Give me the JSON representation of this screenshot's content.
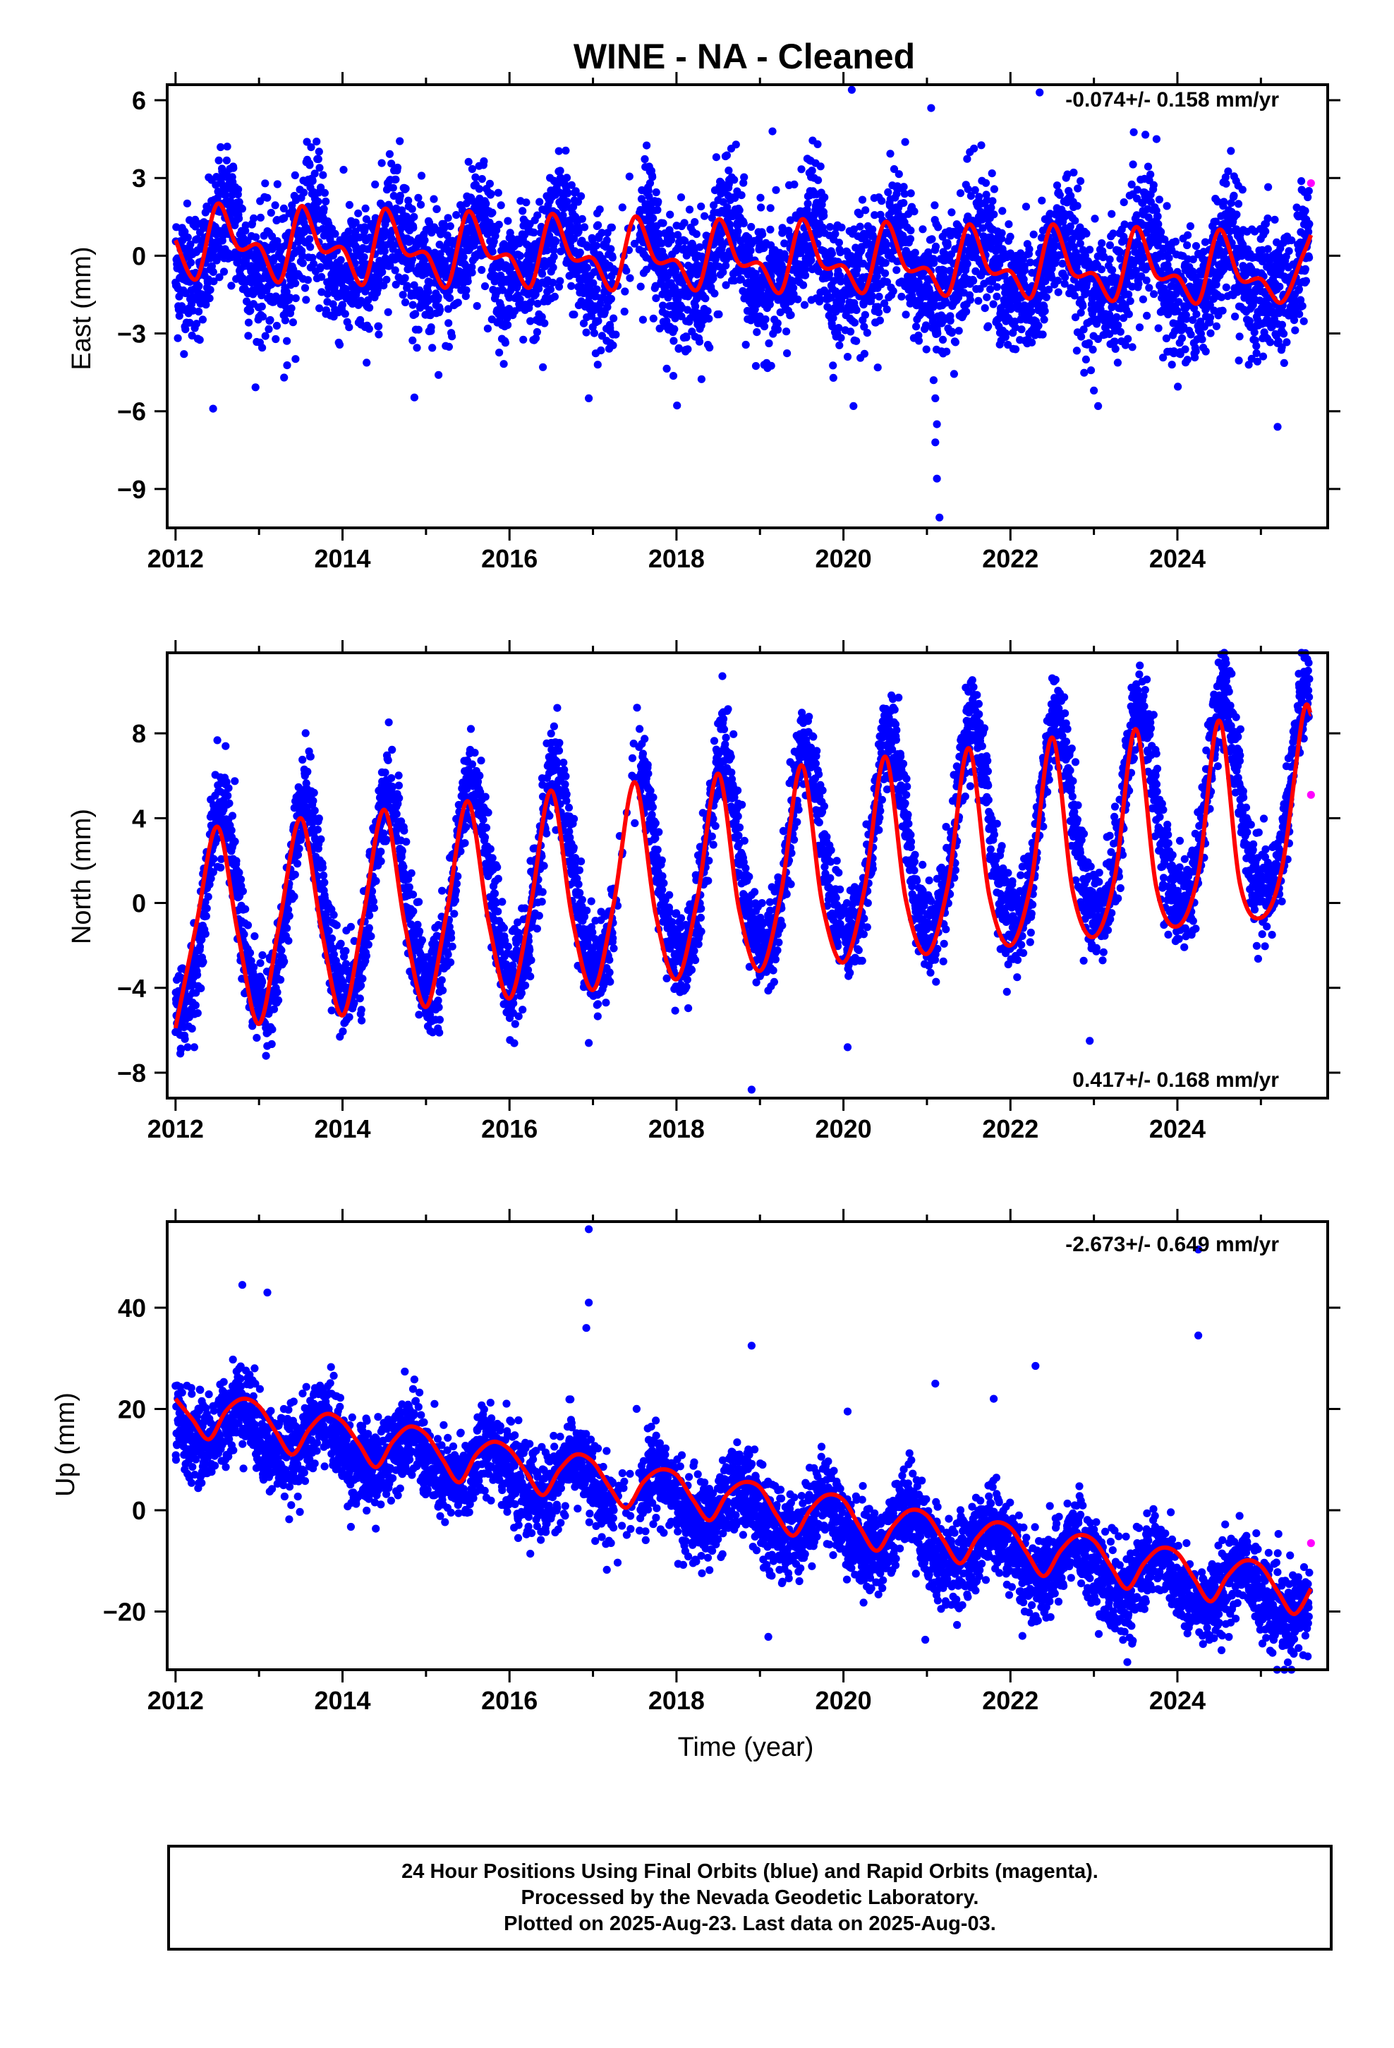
{
  "chart_data": [
    {
      "type": "scatter",
      "title": "WINE  - NA - Cleaned",
      "xlabel": "",
      "ylabel": "East (mm)",
      "xlim": [
        2011.9,
        2025.8
      ],
      "ylim": [
        -10.5,
        6.6
      ],
      "xticks": [
        "2012",
        "2014",
        "2016",
        "2018",
        "2020",
        "2022",
        "2024"
      ],
      "yticks": [
        "6",
        "3",
        "0",
        "-3",
        "-6",
        "-9"
      ],
      "rate_label": "-0.074+/- 0.158 mm/yr",
      "series": [
        {
          "color": "#0000ff",
          "kind": "final_orbits_daily_positions",
          "model": {
            "trend_mm_per_yr": -0.074,
            "offset_mm": 0.2,
            "annual_amp_mm": 1.2,
            "semiannual_amp_mm": 0.5,
            "peak_fraction": 0.62,
            "scatter_mm": 1.25
          },
          "outliers": [
            [
              2012.45,
              -5.9
            ],
            [
              2013.3,
              -4.7
            ],
            [
              2015.15,
              -4.6
            ],
            [
              2016.4,
              -4.3
            ],
            [
              2016.95,
              -5.5
            ],
            [
              2019.15,
              4.8
            ],
            [
              2020.1,
              6.4
            ],
            [
              2020.12,
              -5.8
            ],
            [
              2020.05,
              -3.9
            ],
            [
              2021.05,
              5.7
            ],
            [
              2021.1,
              -5.5
            ],
            [
              2021.12,
              -6.5
            ],
            [
              2021.1,
              -7.2
            ],
            [
              2021.12,
              -8.6
            ],
            [
              2021.15,
              -10.1
            ],
            [
              2021.08,
              -4.8
            ],
            [
              2022.35,
              6.3
            ],
            [
              2023.0,
              -5.2
            ],
            [
              2023.05,
              -5.8
            ],
            [
              2025.2,
              -6.6
            ],
            [
              2023.75,
              4.5
            ]
          ]
        },
        {
          "color": "#ff00ff",
          "kind": "rapid_orbits",
          "points": [
            [
              2025.6,
              2.8
            ]
          ]
        },
        {
          "color": "#ff0000",
          "kind": "model_fit",
          "x": [
            2012.0,
            2012.25,
            2012.5,
            2012.75,
            2013.0,
            2013.25,
            2013.5,
            2013.75,
            2014.0,
            2014.25,
            2014.5,
            2014.75,
            2015.0,
            2015.25,
            2015.5,
            2015.75,
            2016.0,
            2016.25,
            2016.5,
            2016.75,
            2017.0,
            2017.25,
            2017.5,
            2017.75,
            2018.0,
            2018.25,
            2018.5,
            2018.75,
            2019.0,
            2019.25,
            2019.5,
            2019.75,
            2020.0,
            2020.25,
            2020.5,
            2020.75,
            2021.0,
            2021.25,
            2021.5,
            2021.75,
            2022.0,
            2022.25,
            2022.5,
            2022.75,
            2023.0,
            2023.25,
            2023.5,
            2023.75,
            2024.0,
            2024.25,
            2024.5,
            2024.75,
            2025.0,
            2025.25,
            2025.5,
            2025.6
          ],
          "y": [
            0.6,
            -0.9,
            2.0,
            0.3,
            0.4,
            -1.0,
            1.9,
            0.2,
            0.3,
            -1.1,
            1.8,
            0.1,
            0.1,
            -1.2,
            1.7,
            0.0,
            0.0,
            -1.2,
            1.6,
            -0.1,
            -0.1,
            -1.3,
            1.5,
            -0.2,
            -0.2,
            -1.3,
            1.4,
            -0.3,
            -0.3,
            -1.4,
            1.4,
            -0.4,
            -0.4,
            -1.4,
            1.3,
            -0.5,
            -0.5,
            -1.5,
            1.2,
            -0.6,
            -0.6,
            -1.6,
            1.2,
            -0.7,
            -0.7,
            -1.7,
            1.1,
            -0.8,
            -0.8,
            -1.8,
            1.0,
            -0.9,
            -0.9,
            -1.8,
            0.0,
            0.8
          ]
        }
      ]
    },
    {
      "type": "scatter",
      "xlabel": "",
      "ylabel": "North (mm)",
      "xlim": [
        2011.9,
        2025.8
      ],
      "ylim": [
        -9.2,
        11.8
      ],
      "xticks": [
        "2012",
        "2014",
        "2016",
        "2018",
        "2020",
        "2022",
        "2024"
      ],
      "yticks": [
        "8",
        "4",
        "0",
        "-4",
        "-8"
      ],
      "rate_label": "0.417+/- 0.168 mm/yr",
      "series": [
        {
          "color": "#0000ff",
          "kind": "final_orbits_daily_positions",
          "model": {
            "trend_mm_per_yr": 0.417,
            "offset_mm": -1.0,
            "annual_amp_mm": 4.7,
            "semiannual_amp_mm": 0.6,
            "peak_fraction": 0.55,
            "scatter_mm": 1.1
          },
          "outliers": [
            [
              2018.9,
              -8.8
            ],
            [
              2020.05,
              -6.8
            ],
            [
              2016.95,
              -6.6
            ],
            [
              2022.95,
              -6.5
            ],
            [
              2018.55,
              10.7
            ],
            [
              2023.55,
              11.2
            ],
            [
              2013.55,
              6.0
            ],
            [
              2012.6,
              7.4
            ],
            [
              2022.5,
              10.6
            ]
          ]
        },
        {
          "color": "#ff00ff",
          "kind": "rapid_orbits",
          "points": [
            [
              2025.6,
              5.1
            ]
          ]
        },
        {
          "color": "#ff0000",
          "kind": "model_fit",
          "x": [
            2012.0,
            2012.25,
            2012.5,
            2012.75,
            2013.0,
            2013.25,
            2013.5,
            2013.75,
            2014.0,
            2014.25,
            2014.5,
            2014.75,
            2015.0,
            2015.25,
            2015.5,
            2015.75,
            2016.0,
            2016.25,
            2016.5,
            2016.75,
            2017.0,
            2017.25,
            2017.5,
            2017.75,
            2018.0,
            2018.25,
            2018.5,
            2018.75,
            2019.0,
            2019.25,
            2019.5,
            2019.75,
            2020.0,
            2020.25,
            2020.5,
            2020.75,
            2021.0,
            2021.25,
            2021.5,
            2021.75,
            2022.0,
            2022.25,
            2022.5,
            2022.75,
            2023.0,
            2023.25,
            2023.5,
            2023.75,
            2024.0,
            2024.25,
            2024.5,
            2024.75,
            2025.0,
            2025.25,
            2025.5,
            2025.6
          ],
          "y": [
            -5.9,
            -1.0,
            3.6,
            -1.5,
            -5.7,
            -0.8,
            4.0,
            -1.3,
            -5.3,
            -0.6,
            4.4,
            -1.1,
            -4.9,
            -0.4,
            4.8,
            -0.9,
            -4.5,
            -0.2,
            5.3,
            -0.7,
            -4.1,
            0.0,
            5.7,
            -0.5,
            -3.6,
            0.2,
            6.1,
            -0.3,
            -3.2,
            0.4,
            6.5,
            -0.1,
            -2.8,
            0.6,
            6.9,
            0.1,
            -2.4,
            0.8,
            7.3,
            0.3,
            -2.0,
            1.0,
            7.8,
            0.5,
            -1.6,
            1.2,
            8.2,
            0.7,
            -1.1,
            1.4,
            8.6,
            0.9,
            -0.7,
            1.6,
            8.8,
            8.9
          ]
        }
      ]
    },
    {
      "type": "scatter",
      "xlabel": "Time (year)",
      "ylabel": "Up (mm)",
      "xlim": [
        2011.9,
        2025.8
      ],
      "ylim": [
        -31.5,
        57
      ],
      "xticks": [
        "2012",
        "2014",
        "2016",
        "2018",
        "2020",
        "2022",
        "2024"
      ],
      "yticks": [
        "40",
        "20",
        "0",
        "-20"
      ],
      "rate_label": "-2.673+/- 0.649 mm/yr",
      "series": [
        {
          "color": "#0000ff",
          "kind": "final_orbits_daily_positions",
          "model": {
            "trend_mm_per_yr": -2.673,
            "offset_mm": 18.0,
            "annual_amp_mm": 4.5,
            "semiannual_amp_mm": 1.0,
            "peak_fraction": 0.78,
            "scatter_mm": 4.2
          },
          "outliers": [
            [
              2016.95,
              55.5
            ],
            [
              2016.95,
              41.0
            ],
            [
              2016.92,
              36.0
            ],
            [
              2012.8,
              44.5
            ],
            [
              2013.1,
              43.0
            ],
            [
              2018.9,
              32.5
            ],
            [
              2020.05,
              19.5
            ],
            [
              2021.1,
              25.0
            ],
            [
              2021.8,
              22.0
            ],
            [
              2022.3,
              28.5
            ],
            [
              2024.25,
              51.5
            ],
            [
              2024.25,
              34.5
            ],
            [
              2023.4,
              -30.0
            ],
            [
              2019.1,
              -25.0
            ]
          ]
        },
        {
          "color": "#ff00ff",
          "kind": "rapid_orbits",
          "points": [
            [
              2025.6,
              -6.5
            ]
          ]
        },
        {
          "color": "#ff0000",
          "kind": "model_fit",
          "x": [
            2012.0,
            2012.2,
            2012.4,
            2012.6,
            2012.8,
            2013.0,
            2013.2,
            2013.4,
            2013.6,
            2013.8,
            2014.0,
            2014.2,
            2014.4,
            2014.6,
            2014.8,
            2015.0,
            2015.2,
            2015.4,
            2015.6,
            2015.8,
            2016.0,
            2016.2,
            2016.4,
            2016.6,
            2016.8,
            2017.0,
            2017.2,
            2017.4,
            2017.6,
            2017.8,
            2018.0,
            2018.2,
            2018.4,
            2018.6,
            2018.8,
            2019.0,
            2019.2,
            2019.4,
            2019.6,
            2019.8,
            2020.0,
            2020.2,
            2020.4,
            2020.6,
            2020.8,
            2021.0,
            2021.2,
            2021.4,
            2021.6,
            2021.8,
            2022.0,
            2022.2,
            2022.4,
            2022.6,
            2022.8,
            2023.0,
            2023.2,
            2023.4,
            2023.6,
            2023.8,
            2024.0,
            2024.2,
            2024.4,
            2024.6,
            2024.8,
            2025.0,
            2025.2,
            2025.4,
            2025.6
          ],
          "y": [
            22.0,
            18.0,
            14.0,
            19.5,
            22.0,
            20.5,
            15.5,
            11.0,
            16.0,
            19.0,
            17.5,
            13.0,
            8.5,
            13.5,
            16.5,
            15.0,
            10.0,
            5.5,
            11.0,
            13.5,
            12.0,
            7.5,
            3.0,
            8.0,
            11.0,
            9.5,
            4.5,
            0.5,
            5.5,
            8.0,
            7.0,
            2.0,
            -2.0,
            3.0,
            5.5,
            4.5,
            -1.0,
            -5.0,
            0.0,
            3.0,
            2.0,
            -3.5,
            -8.0,
            -3.0,
            0.0,
            -1.0,
            -6.0,
            -10.5,
            -5.5,
            -2.5,
            -3.5,
            -8.5,
            -13.0,
            -8.0,
            -5.0,
            -6.0,
            -11.0,
            -15.5,
            -10.5,
            -7.5,
            -8.5,
            -13.5,
            -18.0,
            -13.0,
            -10.0,
            -11.0,
            -16.0,
            -20.5,
            -15.5
          ]
        }
      ]
    }
  ],
  "footer": {
    "line1": "24 Hour Positions Using Final Orbits (blue) and Rapid Orbits (magenta).",
    "line2": "Processed by the Nevada Geodetic Laboratory.",
    "line3": "Plotted on 2025-Aug-23. Last data on 2025-Aug-03."
  }
}
